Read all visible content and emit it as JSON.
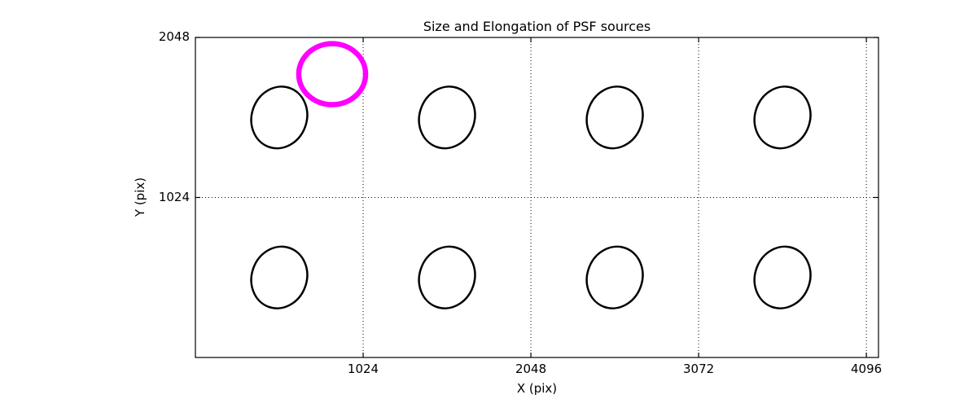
{
  "figure": {
    "background": "#ffffff",
    "axis_color": "#000000",
    "grid_color": "#000000"
  },
  "chart_data": {
    "type": "scatter",
    "title": "Size and Elongation of PSF sources",
    "xlabel": "X (pix)",
    "ylabel": "Y (pix)",
    "xlim": [
      0,
      4170
    ],
    "ylim": [
      0,
      2048
    ],
    "xticks": [
      1024,
      2048,
      3072,
      4096
    ],
    "yticks": [
      1024,
      2048
    ],
    "grid": true,
    "grid_style": "dotted",
    "psf_ellipse_color": "#000000",
    "psf_ellipse_stroke_px": 2.5,
    "psf_ellipses": [
      {
        "x": 512,
        "y": 1536,
        "semi_major": 200,
        "semi_minor": 168,
        "angle_deg": 20
      },
      {
        "x": 1536,
        "y": 1536,
        "semi_major": 200,
        "semi_minor": 168,
        "angle_deg": 20
      },
      {
        "x": 2560,
        "y": 1536,
        "semi_major": 200,
        "semi_minor": 168,
        "angle_deg": 20
      },
      {
        "x": 3584,
        "y": 1536,
        "semi_major": 200,
        "semi_minor": 168,
        "angle_deg": 20
      },
      {
        "x": 512,
        "y": 512,
        "semi_major": 200,
        "semi_minor": 168,
        "angle_deg": 20
      },
      {
        "x": 1536,
        "y": 512,
        "semi_major": 200,
        "semi_minor": 168,
        "angle_deg": 20
      },
      {
        "x": 2560,
        "y": 512,
        "semi_major": 200,
        "semi_minor": 168,
        "angle_deg": 20
      },
      {
        "x": 3584,
        "y": 512,
        "semi_major": 200,
        "semi_minor": 168,
        "angle_deg": 20
      }
    ],
    "reference_ellipse": {
      "x": 835,
      "y": 1813,
      "semi_major": 195,
      "semi_minor": 204,
      "angle_deg": 0,
      "color": "#ff00ff",
      "stroke_px": 6.5
    }
  }
}
